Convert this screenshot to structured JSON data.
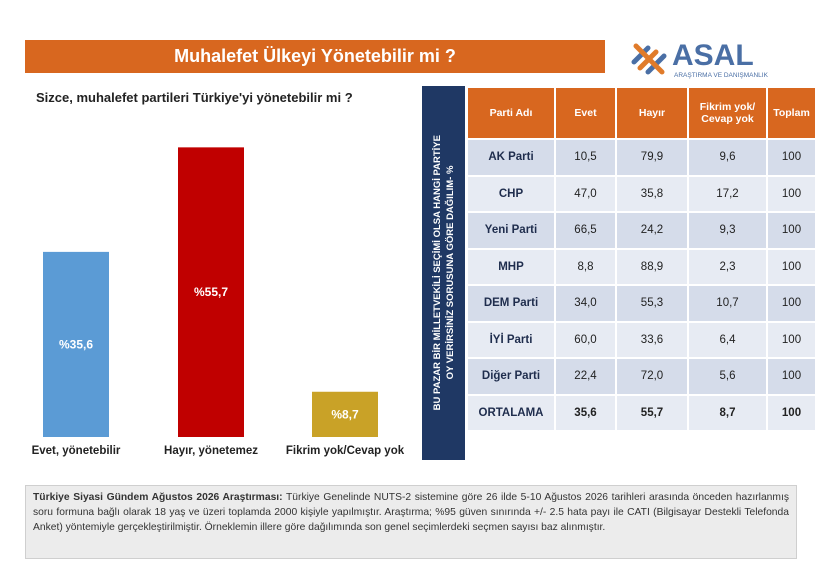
{
  "header": {
    "title": "Muhalefet Ülkeyi Yönetebilir mi ?",
    "logo": "ASAL",
    "logo_sub": "ARAŞTIRMA VE DANIŞMANLIK"
  },
  "chart_data": {
    "type": "bar",
    "title": "Sizce, muhalefet partileri Türkiye'yi yönetebilir mi ?",
    "categories": [
      "Evet, yönetebilir",
      "Hayır, yönetemez",
      "Fikrim yok/Cevap yok"
    ],
    "values": [
      35.6,
      55.7,
      8.7
    ],
    "value_labels": [
      "%35,6",
      "%55,7",
      "%8,7"
    ],
    "colors": [
      "#5b9bd5",
      "#c00000",
      "#c9a227"
    ]
  },
  "table": {
    "side_label": [
      "BU PAZAR BİR MİLLETVEKİLİ SEÇİMİ OLSA HANGİ PARTİYE",
      "OY VERİRSİNİZ SORUSUNA GÖRE DAĞILIM- %"
    ],
    "columns": [
      "Parti Adı",
      "Evet",
      "Hayır",
      "Fikrim yok/ Cevap yok",
      "Toplam"
    ],
    "rows": [
      [
        "AK Parti",
        "10,5",
        "79,9",
        "9,6",
        "100"
      ],
      [
        "CHP",
        "47,0",
        "35,8",
        "17,2",
        "100"
      ],
      [
        "Yeni Parti",
        "66,5",
        "24,2",
        "9,3",
        "100"
      ],
      [
        "MHP",
        "8,8",
        "88,9",
        "2,3",
        "100"
      ],
      [
        "DEM Parti",
        "34,0",
        "55,3",
        "10,7",
        "100"
      ],
      [
        "İYİ Parti",
        "60,0",
        "33,6",
        "6,4",
        "100"
      ],
      [
        "Diğer Parti",
        "22,4",
        "72,0",
        "5,6",
        "100"
      ],
      [
        "ORTALAMA",
        "35,6",
        "55,7",
        "8,7",
        "100"
      ]
    ]
  },
  "footnote": {
    "bold": "Türkiye Siyasi Gündem Ağustos 2026 Araştırması:",
    "text": "Türkiye Genelinde NUTS-2 sistemine göre 26 ilde 5-10 Ağustos 2026 tarihleri arasında önceden hazırlanmış soru formuna bağlı olarak 18 yaş ve üzeri toplamda 2000 kişiyle yapılmıştır. Araştırma; %95 güven sınırında +/- 2.5 hata payı ile CATI (Bilgisayar Destekli Telefonda Anket) yöntemiyle gerçekleştirilmiştir. Örneklemin illere göre dağılımında son genel seçimlerdeki seçmen sayısı baz alınmıştır."
  }
}
